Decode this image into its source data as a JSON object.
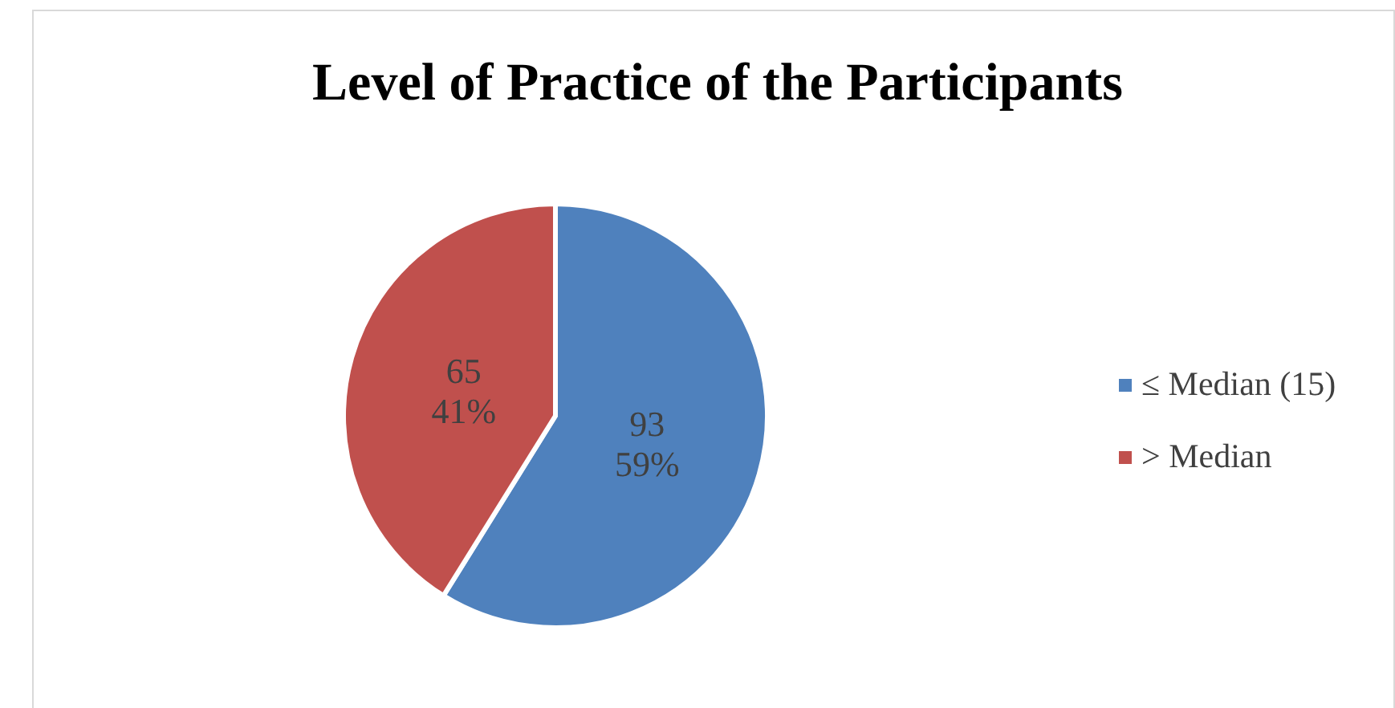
{
  "chart_data": {
    "type": "pie",
    "title": "Level of Practice of the Participants",
    "categories": [
      "≤ Median (15)",
      "> Median"
    ],
    "values": [
      93,
      65
    ],
    "colors": [
      "#4f81bd",
      "#c0504d"
    ],
    "value_labels": [
      "93\n59%",
      "65\n41%"
    ],
    "legend": "right"
  }
}
